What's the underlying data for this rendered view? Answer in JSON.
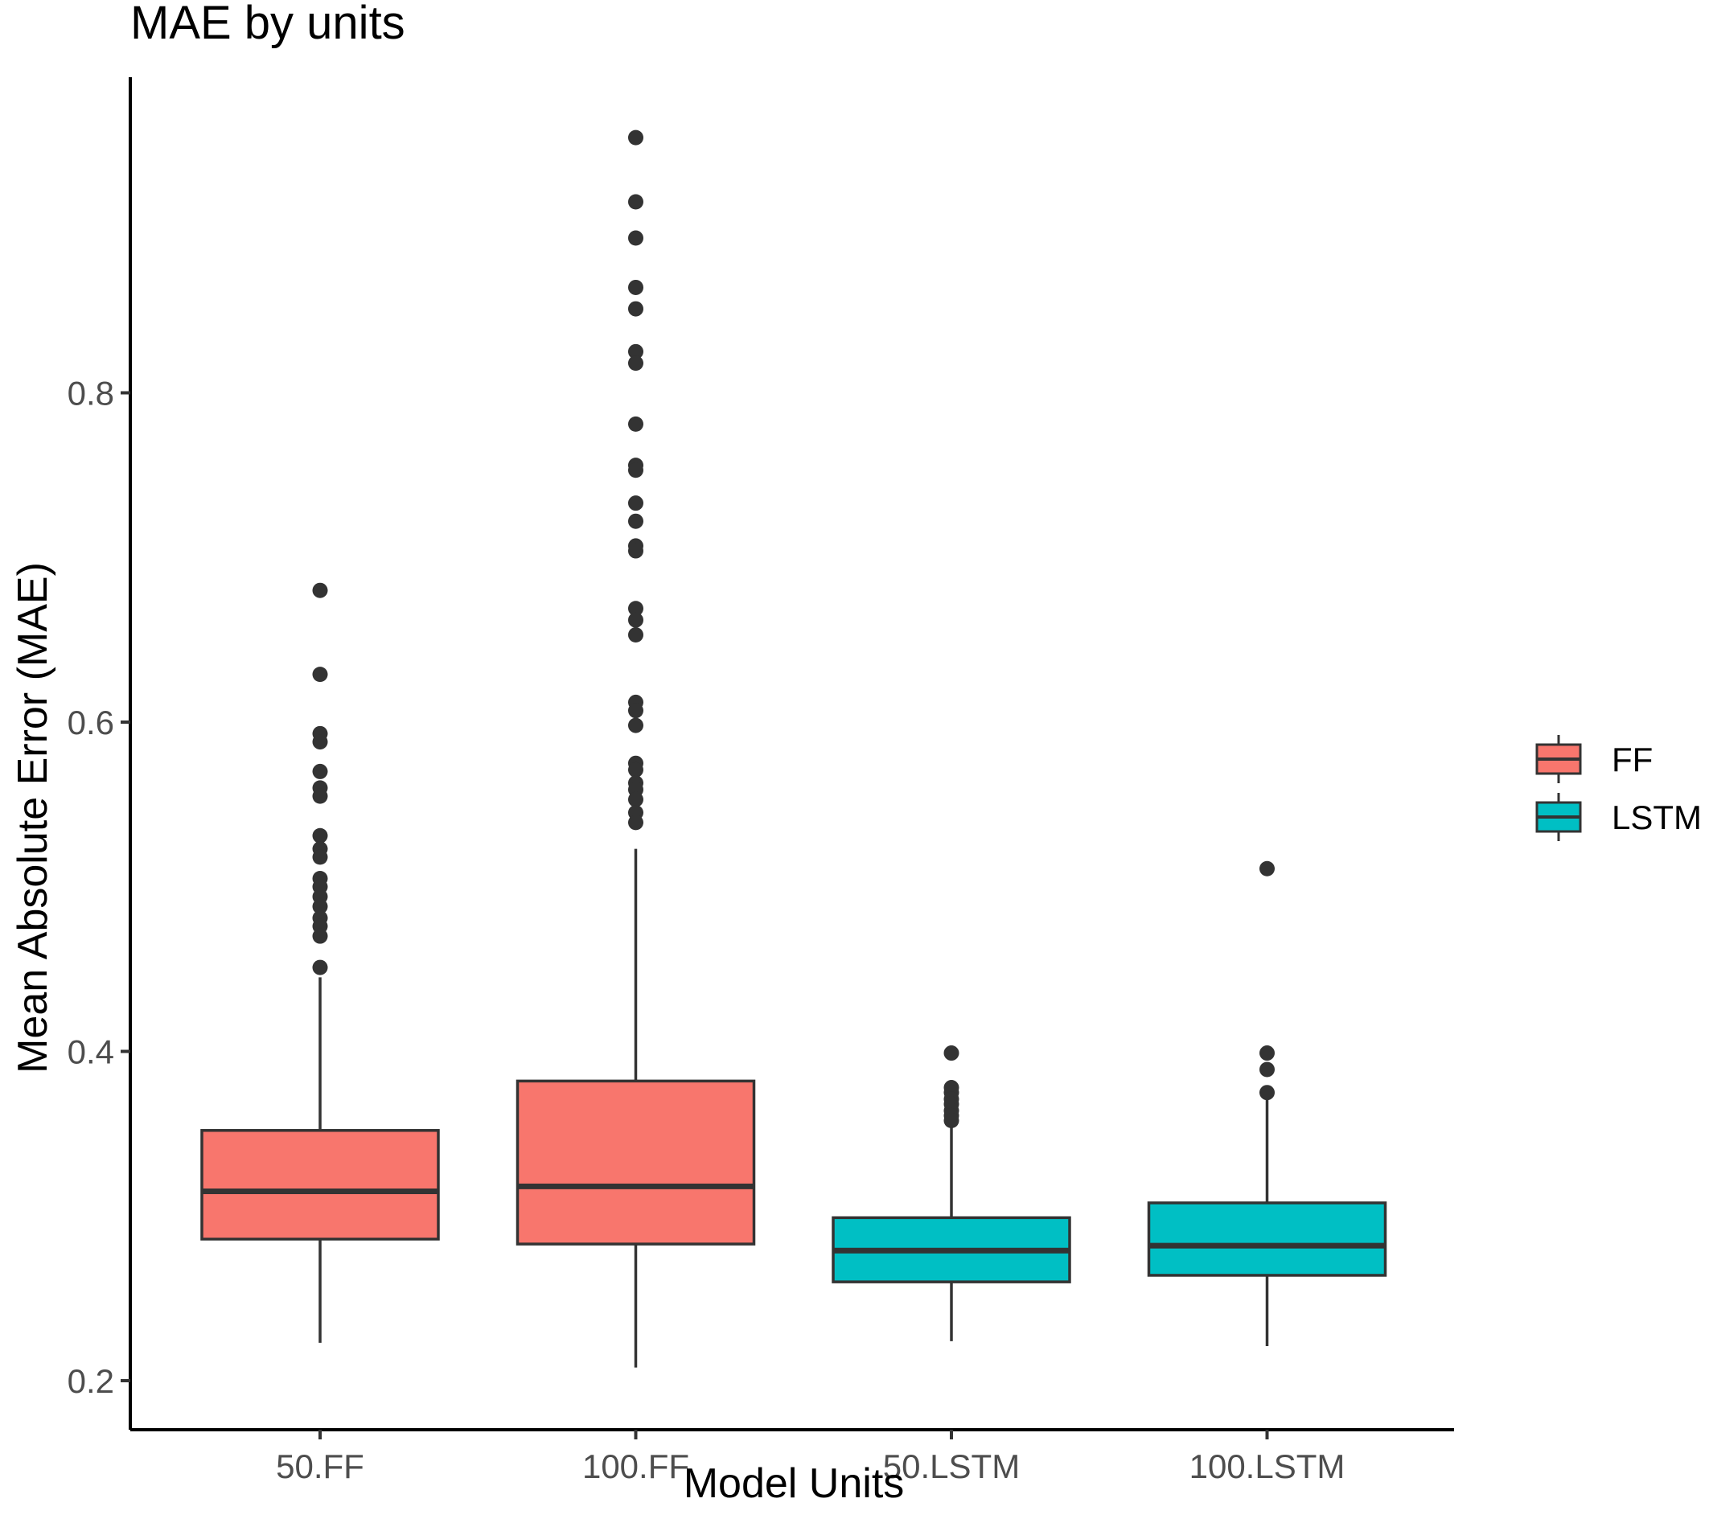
{
  "chart_data": {
    "type": "boxplot",
    "title": "MAE by units",
    "xlabel": "Model Units",
    "ylabel": "Mean Absolute Error (MAE)",
    "ylim": [
      0.17,
      0.99
    ],
    "yticks": [
      0.2,
      0.4,
      0.6,
      0.8
    ],
    "ytick_labels": [
      "0.2",
      "0.4",
      "0.6",
      "0.8"
    ],
    "categories": [
      "50.FF",
      "100.FF",
      "50.LSTM",
      "100.LSTM"
    ],
    "legend": {
      "position": "right",
      "entries": [
        {
          "label": "FF",
          "color": "#F8766D"
        },
        {
          "label": "LSTM",
          "color": "#00BFC4"
        }
      ]
    },
    "boxes": [
      {
        "category": "50.FF",
        "group": "FF",
        "whisker_low": 0.223,
        "q1": 0.286,
        "median": 0.315,
        "q3": 0.352,
        "whisker_high": 0.445,
        "outliers": [
          0.68,
          0.629,
          0.593,
          0.588,
          0.57,
          0.56,
          0.555,
          0.531,
          0.523,
          0.518,
          0.505,
          0.5,
          0.494,
          0.488,
          0.481,
          0.476,
          0.47,
          0.451
        ]
      },
      {
        "category": "100.FF",
        "group": "FF",
        "whisker_low": 0.208,
        "q1": 0.283,
        "median": 0.318,
        "q3": 0.382,
        "whisker_high": 0.523,
        "outliers": [
          0.955,
          0.916,
          0.894,
          0.864,
          0.851,
          0.825,
          0.818,
          0.781,
          0.756,
          0.753,
          0.733,
          0.722,
          0.707,
          0.704,
          0.669,
          0.662,
          0.653,
          0.612,
          0.607,
          0.598,
          0.575,
          0.571,
          0.563,
          0.559,
          0.553,
          0.545,
          0.539
        ]
      },
      {
        "category": "50.LSTM",
        "group": "LSTM",
        "whisker_low": 0.224,
        "q1": 0.26,
        "median": 0.279,
        "q3": 0.299,
        "whisker_high": 0.355,
        "outliers": [
          0.399,
          0.378,
          0.375,
          0.371,
          0.368,
          0.364,
          0.361,
          0.358
        ]
      },
      {
        "category": "100.LSTM",
        "group": "LSTM",
        "whisker_low": 0.221,
        "q1": 0.264,
        "median": 0.282,
        "q3": 0.308,
        "whisker_high": 0.372,
        "outliers": [
          0.511,
          0.399,
          0.389,
          0.375
        ]
      }
    ],
    "box_stroke": "#333333",
    "axis_color": "#000000"
  }
}
